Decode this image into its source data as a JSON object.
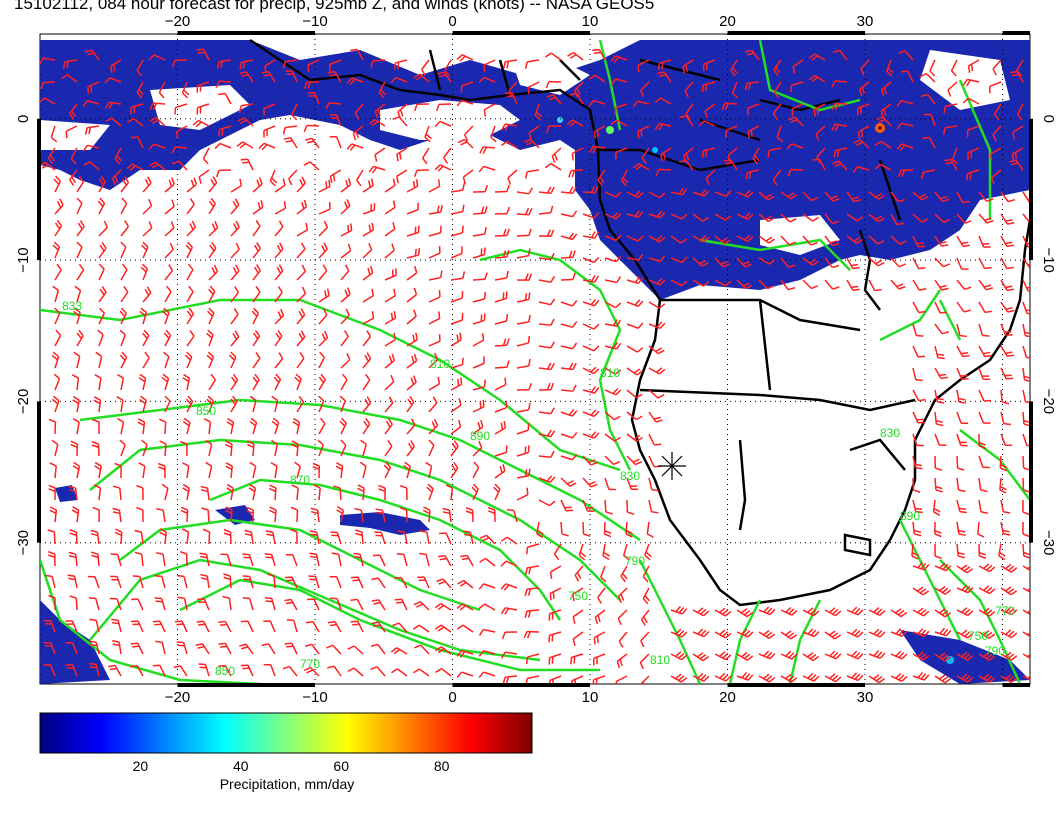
{
  "title": "15102112, 084 hour forecast for precip, 925mb Z, and winds (knots) -- NASA GEOS5",
  "map": {
    "lon_range": [
      -30,
      42
    ],
    "lat_range": [
      -40,
      6
    ],
    "lon_ticks": [
      -20,
      -10,
      0,
      10,
      20,
      30
    ],
    "lat_ticks": [
      0,
      -10,
      -20,
      -30
    ],
    "lon_tick_labels": [
      "−20",
      "−10",
      "0",
      "10",
      "20",
      "30"
    ],
    "lat_tick_labels": [
      "0",
      "−10",
      "−20",
      "−30"
    ],
    "gridlines": "dotted",
    "marker": {
      "name": "station-marker",
      "lon": 15,
      "lat": -24
    }
  },
  "contours": {
    "color": "#22dd22",
    "visible_labels": [
      "833",
      "810",
      "850",
      "870",
      "890",
      "810",
      "830",
      "790",
      "750",
      "770",
      "810",
      "850",
      "770",
      "750",
      "790",
      "890",
      "830"
    ]
  },
  "winds": {
    "color": "#ff2020",
    "units": "knots"
  },
  "colorbar": {
    "label": "Precipitation, mm/day",
    "ticks": [
      20,
      40,
      60,
      80
    ],
    "range": [
      0,
      98
    ],
    "colors": [
      "#000080",
      "#0000ff",
      "#0080ff",
      "#00ffff",
      "#80ff80",
      "#ffff00",
      "#ff8000",
      "#ff0000",
      "#800000"
    ]
  },
  "colors": {
    "land_border": "#000000",
    "precip_fill": "#1a28b0",
    "contour": "#22dd22",
    "barb": "#ff2020"
  }
}
